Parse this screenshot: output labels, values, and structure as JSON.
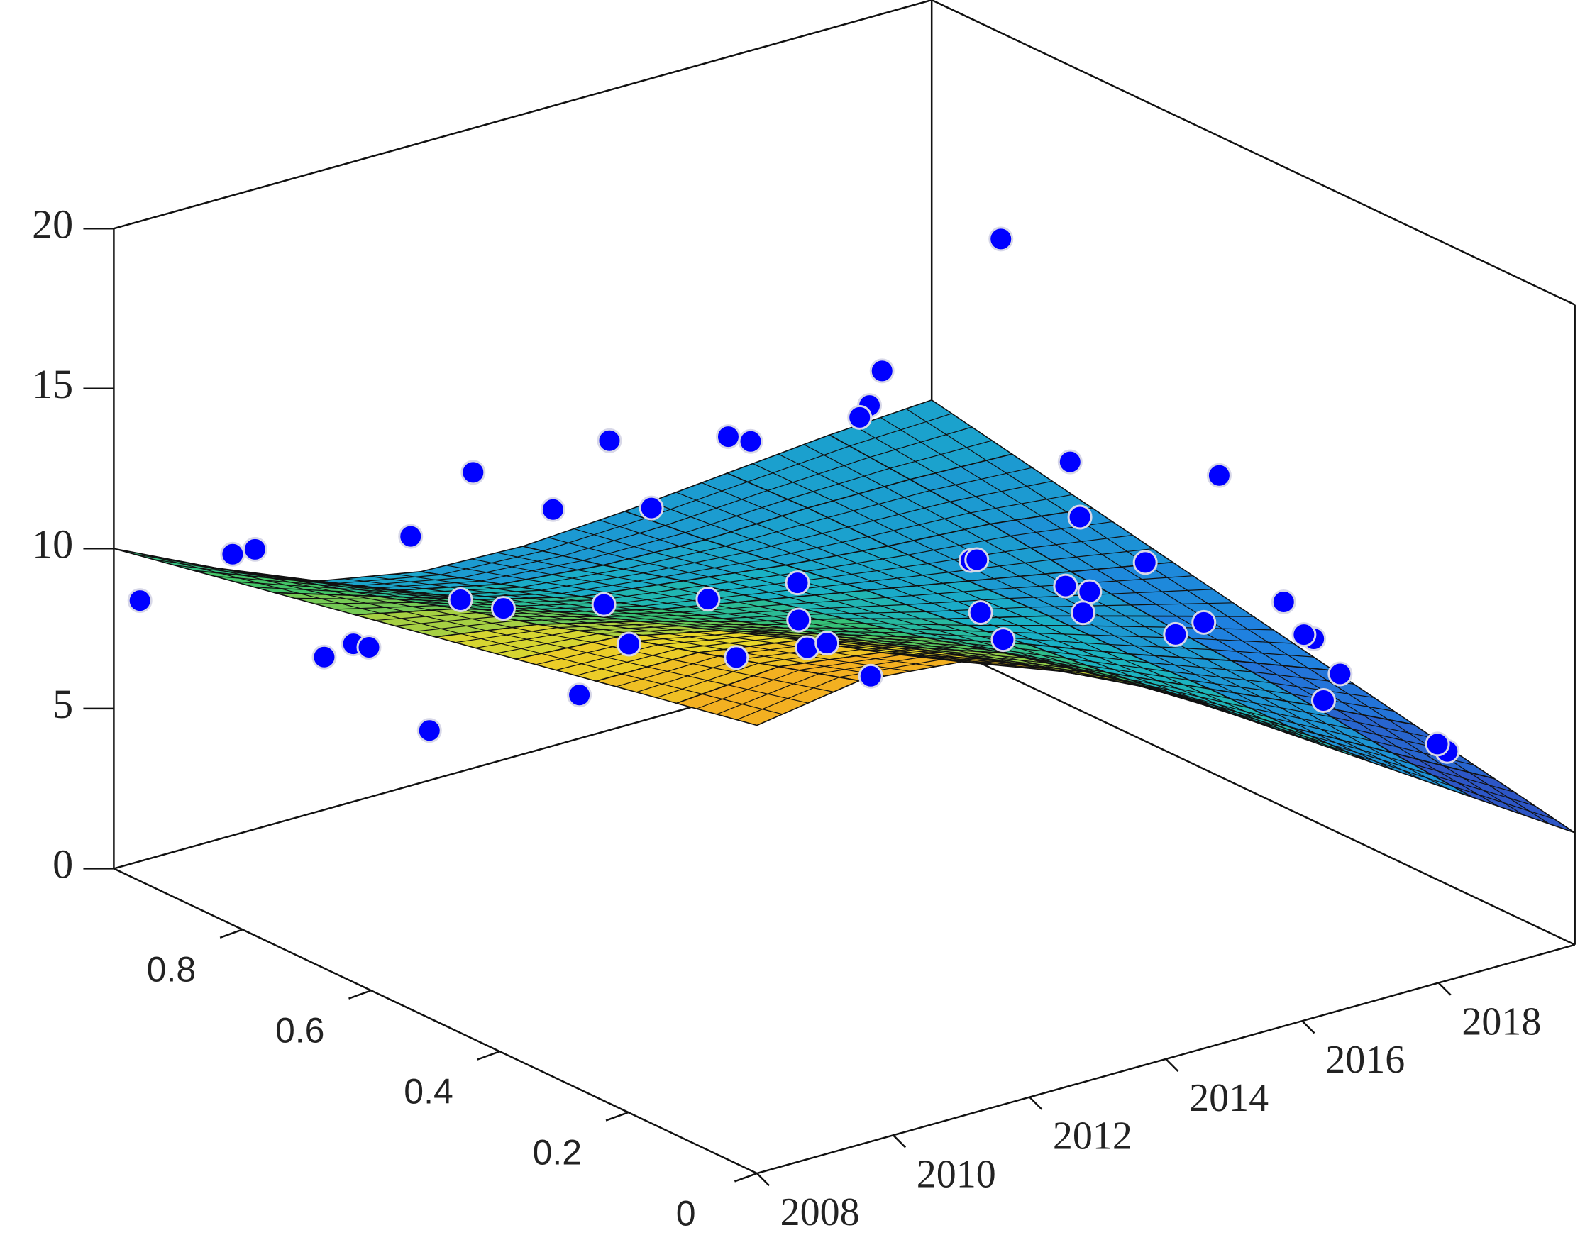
{
  "chart_data": {
    "type": "surface3d",
    "xlim": [
      2008,
      2020
    ],
    "ylim": [
      0,
      1
    ],
    "zlim": [
      0,
      20
    ],
    "xticks": [
      2008,
      2010,
      2012,
      2014,
      2016,
      2018
    ],
    "yticks": [
      0,
      0.2,
      0.4,
      0.6,
      0.8
    ],
    "zticks": [
      0,
      5,
      10,
      15,
      20
    ],
    "colormap": [
      "#3e26a8",
      "#1f7fe0",
      "#19b2c4",
      "#3cc46a",
      "#e8d72a",
      "#f7a21e"
    ],
    "surface": {
      "x": [
        2008,
        2009.5,
        2011,
        2012.5,
        2014,
        2015.5,
        2017,
        2018.5,
        2020
      ],
      "y": [
        0,
        0.125,
        0.25,
        0.375,
        0.5,
        0.625,
        0.75,
        0.875,
        1
      ],
      "z": [
        [
          14,
          14.5,
          14.2,
          13,
          11.5,
          9.5,
          7.5,
          5.5,
          3.5
        ],
        [
          13.5,
          13.75,
          13.3,
          12.2,
          10.9,
          9.2,
          7.4,
          5.7,
          4
        ],
        [
          13,
          13,
          12.5,
          11.4,
          10.3,
          8.8,
          7.4,
          6,
          4.5
        ],
        [
          12.5,
          12.3,
          11.6,
          10.6,
          9.6,
          8.5,
          7.3,
          6.2,
          5
        ],
        [
          12,
          11.5,
          10.7,
          9.8,
          9,
          8.1,
          7.3,
          6.4,
          5.5
        ],
        [
          11.5,
          10.8,
          9.8,
          9,
          8.4,
          7.8,
          7.2,
          6.6,
          6
        ],
        [
          11,
          10,
          9,
          8.2,
          7.8,
          7.4,
          7.1,
          6.9,
          6.5
        ],
        [
          10.5,
          9.3,
          8.1,
          7.4,
          7.1,
          7,
          7.1,
          7.1,
          7
        ],
        [
          10,
          8.5,
          7.2,
          6.6,
          6.5,
          6.7,
          7,
          7.3,
          7.5
        ]
      ]
    },
    "scatter": {
      "color": "#0000ff",
      "x": [
        2008.1,
        2008.8,
        2009.6,
        2009.2,
        2010.1,
        2009.8,
        2010.8,
        2011.2,
        2011.6,
        2012.3,
        2012.0,
        2012.8,
        2013.2,
        2013.5,
        2014.0,
        2014.4,
        2014.8,
        2015.2,
        2015.6,
        2016.0,
        2016.4,
        2016.8,
        2017.2,
        2017.6,
        2018.0,
        2018.4,
        2018.8,
        2019.2,
        2019.6,
        2019.5,
        2011.0,
        2012.5,
        2013.5,
        2014.2,
        2015.5,
        2016.5,
        2017.5,
        2018.2,
        2018.6,
        2019.0,
        2019.4,
        2019.8,
        2015.0,
        2016.2,
        2017.0,
        2013.0,
        2010.5,
        2009.5,
        2010.0,
        2012.0
      ],
      "y": [
        0.97,
        0.9,
        0.95,
        0.8,
        0.85,
        0.7,
        0.9,
        0.8,
        0.92,
        0.85,
        0.7,
        0.95,
        0.75,
        0.9,
        0.8,
        0.6,
        0.95,
        0.7,
        0.85,
        0.5,
        0.9,
        0.6,
        0.8,
        0.5,
        0.9,
        0.6,
        0.95,
        0.7,
        0.85,
        0.5,
        0.35,
        0.3,
        0.2,
        0.15,
        0.1,
        0.25,
        0.1,
        0.2,
        0.05,
        0.3,
        0.15,
        0.4,
        0.4,
        0.05,
        0.35,
        0.05,
        0.2,
        0.05,
        0.45,
        0.5
      ],
      "z": [
        8.6,
        10.3,
        9.5,
        7.8,
        7.2,
        6.1,
        6.2,
        8.4,
        9.0,
        7.0,
        5.9,
        10.0,
        6.3,
        8.9,
        9.6,
        6.9,
        9.8,
        7.5,
        10.4,
        8.0,
        9.3,
        8.2,
        10.9,
        7.7,
        9.1,
        8.6,
        9.6,
        8.9,
        14.2,
        10.2,
        11.0,
        10.0,
        11.5,
        12.4,
        11.8,
        9.4,
        9.0,
        6.8,
        6.4,
        7.3,
        5.2,
        6.0,
        11.2,
        12.5,
        10.4,
        14.9,
        13.9,
        15.2,
        12.3,
        10.8
      ]
    }
  }
}
